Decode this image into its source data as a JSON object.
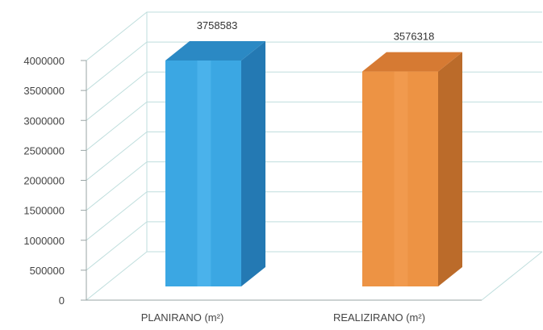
{
  "chart_data": {
    "type": "bar",
    "style": "3d-column",
    "categories": [
      "PLANIRANO (m²)",
      "REALIZIRANO (m²)"
    ],
    "values": [
      3758583,
      3576318
    ],
    "data_labels": [
      "3758583",
      "3576318"
    ],
    "ylim": [
      0,
      4000000
    ],
    "yticks": [
      "0",
      "500000",
      "1000000",
      "1500000",
      "2000000",
      "2500000",
      "3000000",
      "3500000",
      "4000000"
    ],
    "grid": true,
    "legend": "none",
    "colors": {
      "bar_1_front": "#3ba7e3",
      "bar_1_side": "#2479b3",
      "bar_1_top": "#2b89c4",
      "bar_2_front": "#ed9344",
      "bar_2_side": "#bb6b2a",
      "bar_2_top": "#d67a33",
      "grid": "#bfdedd"
    }
  }
}
